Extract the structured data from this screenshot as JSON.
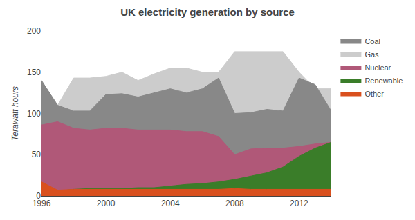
{
  "chart_data": {
    "type": "area",
    "stacked": false,
    "title": "UK electricity generation by source",
    "ylabel": "Terawatt hours",
    "x": [
      1996,
      1997,
      1998,
      1999,
      2000,
      2001,
      2002,
      2003,
      2004,
      2005,
      2006,
      2007,
      2008,
      2009,
      2010,
      2011,
      2012,
      2013,
      2014
    ],
    "series": [
      {
        "name": "Coal",
        "color": "#888888",
        "values": [
          140,
          110,
          103,
          103,
          123,
          124,
          120,
          125,
          130,
          125,
          130,
          143,
          100,
          101,
          105,
          103,
          143,
          135,
          103
        ]
      },
      {
        "name": "Gas",
        "color": "#cccccc",
        "values": [
          140,
          110,
          143,
          143,
          145,
          150,
          140,
          148,
          155,
          155,
          150,
          150,
          175,
          175,
          175,
          175,
          150,
          130,
          130
        ]
      },
      {
        "name": "Nuclear",
        "color": "#b05878",
        "values": [
          86,
          90,
          82,
          80,
          82,
          82,
          80,
          80,
          80,
          78,
          78,
          72,
          50,
          57,
          58,
          58,
          60,
          63,
          65
        ]
      },
      {
        "name": "Renewable",
        "color": "#3a7d29",
        "values": [
          8,
          6,
          8,
          9,
          9,
          9,
          10,
          10,
          12,
          14,
          15,
          17,
          20,
          24,
          28,
          35,
          48,
          58,
          65
        ]
      },
      {
        "name": "Other",
        "color": "#d9501e",
        "values": [
          17,
          7,
          8,
          8,
          8,
          8,
          8,
          8,
          8,
          8,
          8,
          8,
          9,
          8,
          8,
          8,
          8,
          8,
          8
        ]
      }
    ],
    "xlim": [
      1996,
      2014
    ],
    "xticks": [
      1996,
      {
        "value": 1998,
        "label": null
      },
      2000,
      {
        "value": 2002,
        "label": null
      },
      2004,
      {
        "value": 2006,
        "label": null
      },
      2008,
      {
        "value": 2010,
        "label": null
      },
      2012,
      {
        "value": 2014,
        "label": null
      }
    ],
    "ylim": [
      0,
      200
    ],
    "yticks": [
      0,
      50,
      100,
      150,
      200
    ],
    "grid": "y",
    "legend": "upper right"
  }
}
